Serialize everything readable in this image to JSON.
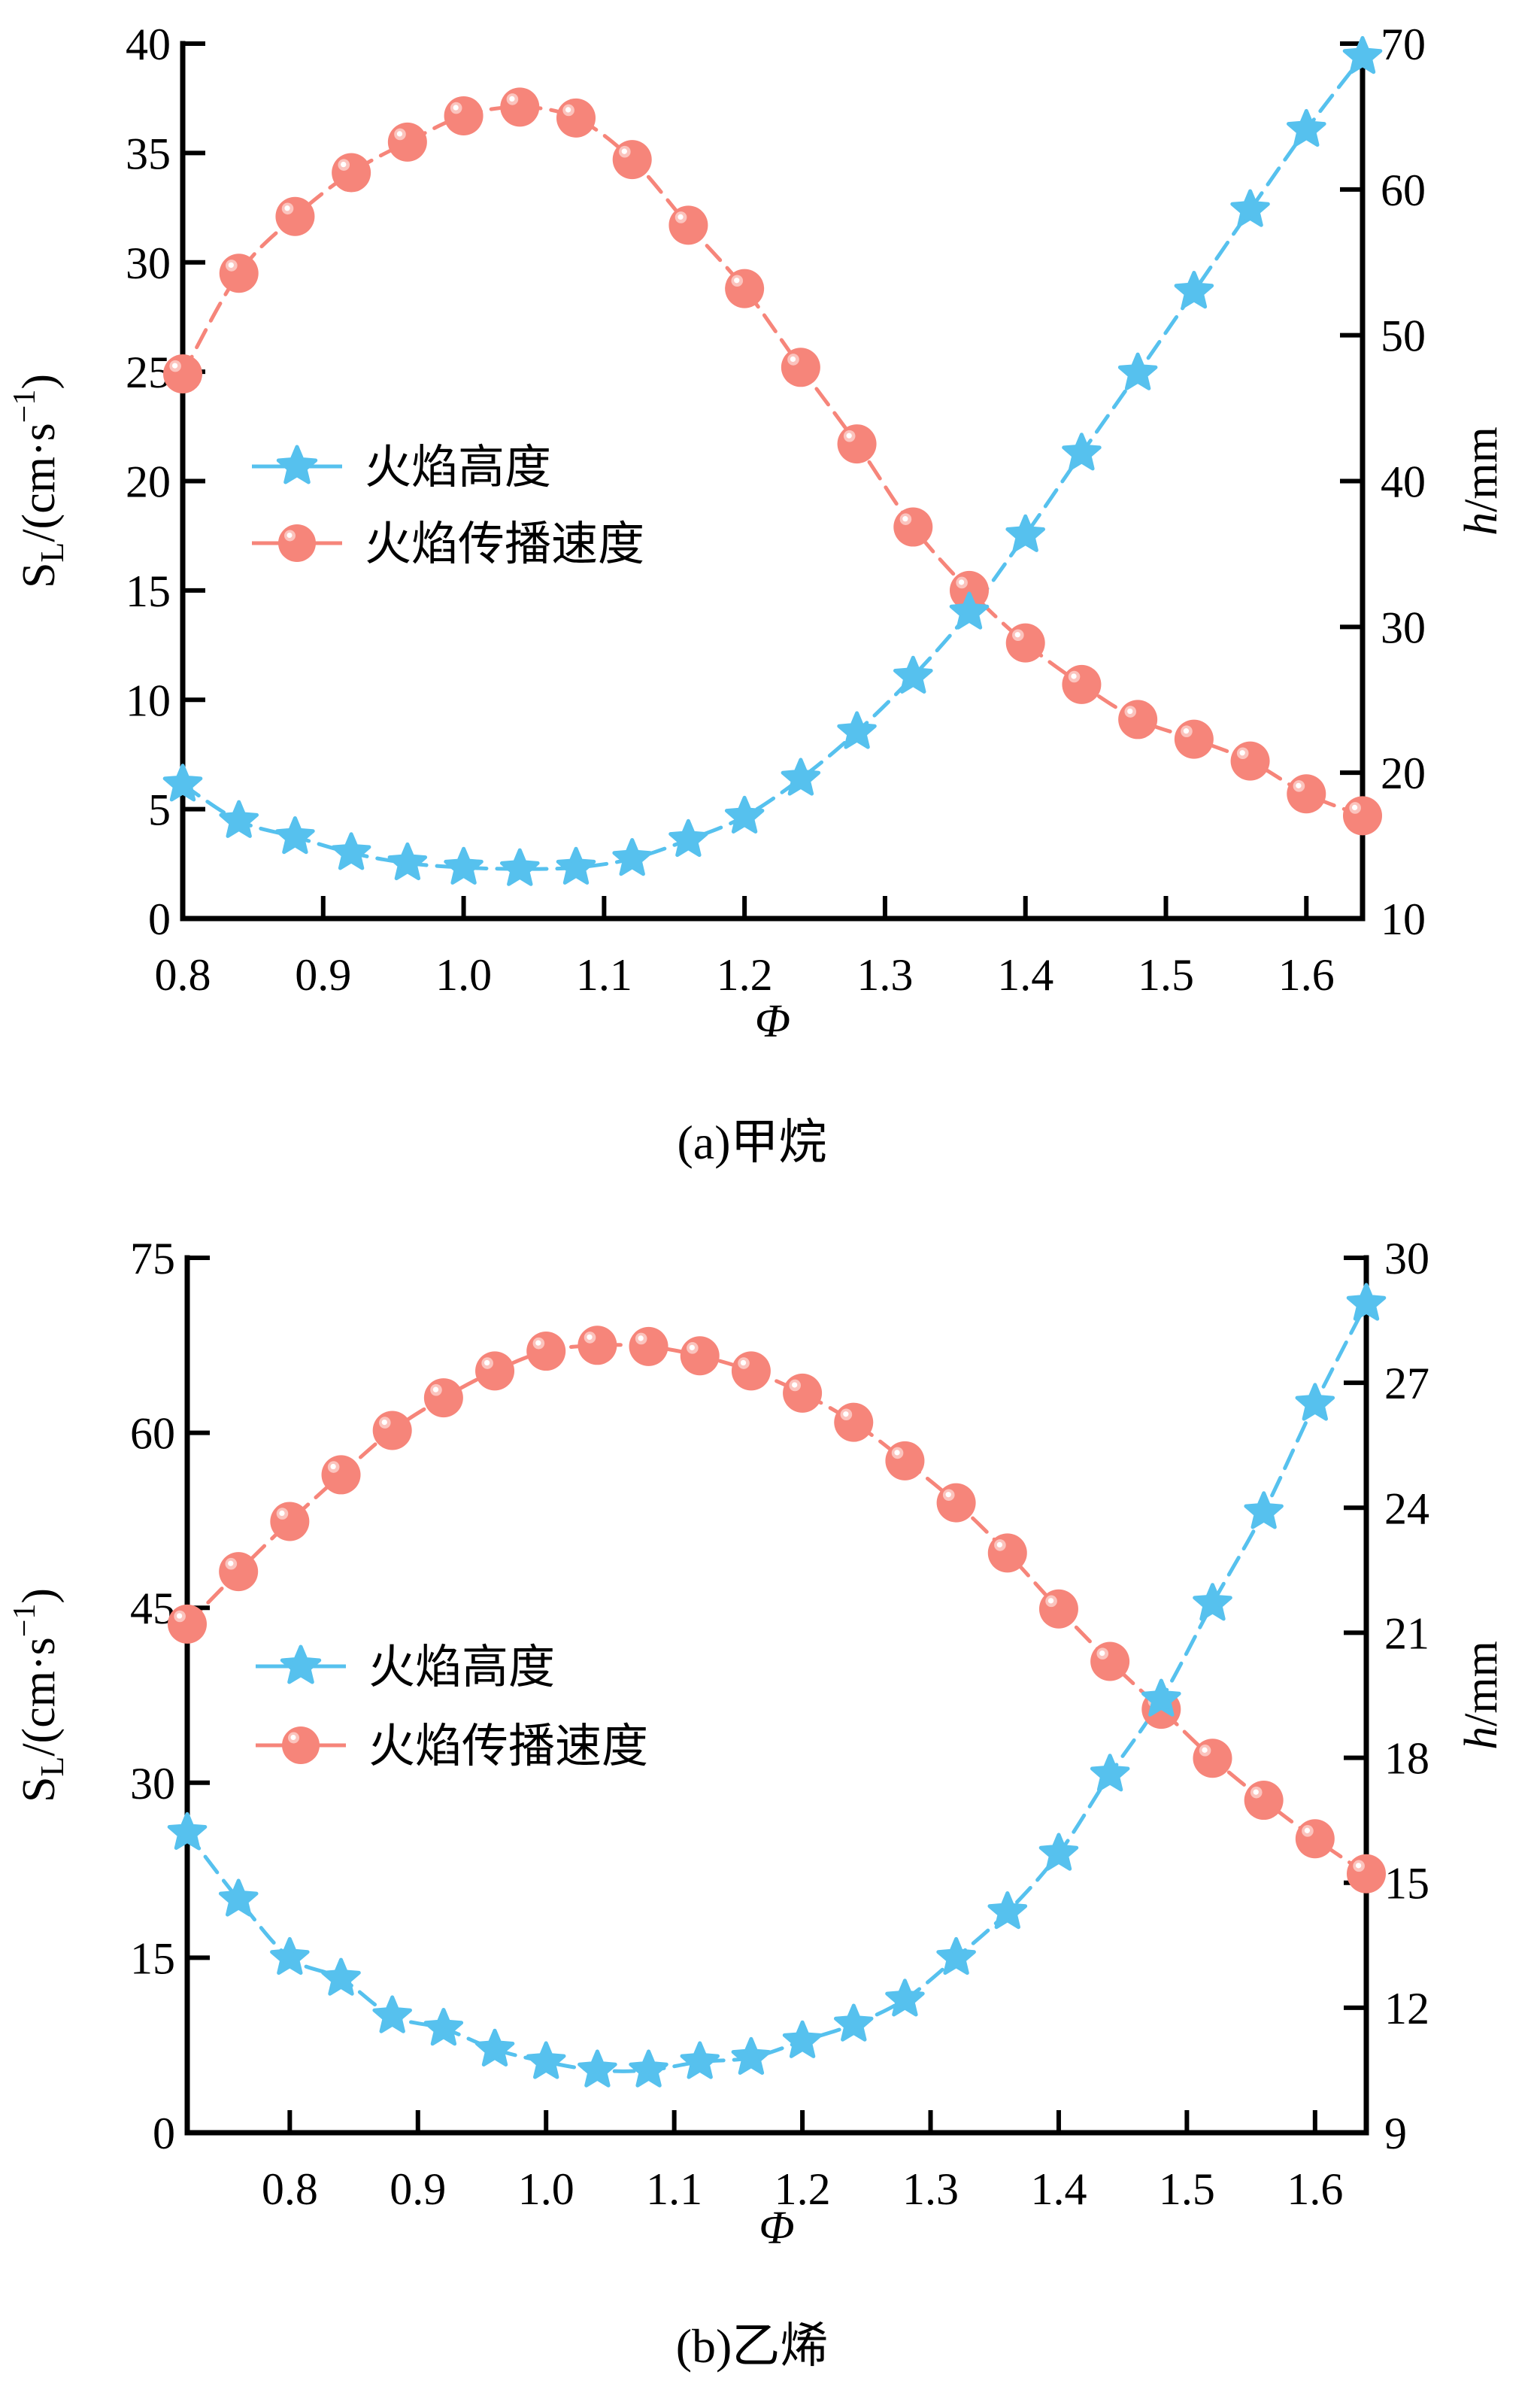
{
  "colors": {
    "height_series": "#56C1EE",
    "speed_series": "#F6857A",
    "axis": "#000000"
  },
  "icons": {
    "height_marker": "star-icon",
    "speed_marker": "sphere-icon"
  },
  "chart_data": [
    {
      "type": "line",
      "panel": "a",
      "caption": "(a)甲烷",
      "xlabel": "Φ",
      "ylabel_left": "S_L/(cm·s^-1)",
      "ylabel_left_parts": {
        "main": "S",
        "sub": "L",
        "unit": "/(cm·s",
        "sup": "−1",
        "close": ")"
      },
      "ylabel_right": "h/mm",
      "ylabel_right_parts": {
        "var": "h",
        "unit": "/mm"
      },
      "xlim": [
        0.8,
        1.64
      ],
      "ylim_left": [
        0,
        40
      ],
      "ylim_right": [
        10,
        70
      ],
      "xticks": [
        "0.8",
        "0.9",
        "1.0",
        "1.1",
        "1.2",
        "1.3",
        "1.4",
        "1.5",
        "1.6"
      ],
      "xtick_values": [
        0.8,
        0.9,
        1.0,
        1.1,
        1.2,
        1.3,
        1.4,
        1.5,
        1.6
      ],
      "yticks_left": [
        "0",
        "5",
        "10",
        "15",
        "20",
        "25",
        "30",
        "35",
        "40"
      ],
      "ytick_values_left": [
        0,
        5,
        10,
        15,
        20,
        25,
        30,
        35,
        40
      ],
      "yticks_right": [
        "10",
        "20",
        "30",
        "40",
        "50",
        "60",
        "70"
      ],
      "ytick_values_right": [
        10,
        20,
        30,
        40,
        50,
        60,
        70
      ],
      "legend": [
        "火焰高度",
        "火焰传播速度"
      ],
      "legend_position": "center-left",
      "grid": false,
      "x": [
        0.8,
        0.84,
        0.88,
        0.92,
        0.96,
        1.0,
        1.04,
        1.08,
        1.12,
        1.16,
        1.2,
        1.24,
        1.28,
        1.32,
        1.36,
        1.4,
        1.44,
        1.48,
        1.52,
        1.56,
        1.6,
        1.64
      ],
      "series": [
        {
          "name": "火焰高度",
          "axis": "right",
          "marker": "star",
          "values": [
            19.2,
            16.7,
            15.6,
            14.5,
            13.8,
            13.5,
            13.4,
            13.5,
            14.1,
            15.4,
            17.0,
            19.6,
            22.8,
            26.6,
            31.0,
            36.3,
            41.9,
            47.4,
            53.0,
            58.6,
            64.1,
            69.1
          ]
        },
        {
          "name": "火焰传播速度",
          "axis": "left",
          "marker": "sphere",
          "values": [
            24.9,
            29.5,
            32.1,
            34.1,
            35.5,
            36.7,
            37.1,
            36.6,
            34.7,
            31.7,
            28.8,
            25.2,
            21.7,
            17.9,
            15.0,
            12.6,
            10.7,
            9.1,
            8.2,
            7.2,
            5.7,
            4.7
          ]
        }
      ]
    },
    {
      "type": "line",
      "panel": "b",
      "caption": "(b)乙烯",
      "xlabel": "Φ",
      "ylabel_left": "S_L/(cm·s^-1)",
      "ylabel_left_parts": {
        "main": "S",
        "sub": "L",
        "unit": "/(cm·s",
        "sup": "−1",
        "close": ")"
      },
      "ylabel_right": "h/mm",
      "ylabel_right_parts": {
        "var": "h",
        "unit": "/mm"
      },
      "xlim": [
        0.72,
        1.64
      ],
      "ylim_left": [
        0,
        75
      ],
      "ylim_right": [
        9,
        30
      ],
      "xticks": [
        "0.8",
        "0.9",
        "1.0",
        "1.1",
        "1.2",
        "1.3",
        "1.4",
        "1.5",
        "1.6"
      ],
      "xtick_values": [
        0.8,
        0.9,
        1.0,
        1.1,
        1.2,
        1.3,
        1.4,
        1.5,
        1.6
      ],
      "yticks_left": [
        "0",
        "15",
        "30",
        "45",
        "60",
        "75"
      ],
      "ytick_values_left": [
        0,
        15,
        30,
        45,
        60,
        75
      ],
      "yticks_right": [
        "9",
        "12",
        "15",
        "18",
        "21",
        "24",
        "27",
        "30"
      ],
      "ytick_values_right": [
        9,
        12,
        15,
        18,
        21,
        24,
        27,
        30
      ],
      "legend": [
        "火焰高度",
        "火焰传播速度"
      ],
      "legend_position": "center-left",
      "grid": false,
      "x": [
        0.72,
        0.76,
        0.8,
        0.84,
        0.88,
        0.92,
        0.96,
        1.0,
        1.04,
        1.08,
        1.12,
        1.16,
        1.2,
        1.24,
        1.28,
        1.32,
        1.36,
        1.4,
        1.44,
        1.48,
        1.52,
        1.56,
        1.6,
        1.64
      ],
      "series": [
        {
          "name": "火焰高度",
          "axis": "right",
          "marker": "star",
          "values": [
            16.2,
            14.6,
            13.2,
            12.7,
            11.8,
            11.5,
            11.0,
            10.7,
            10.5,
            10.5,
            10.7,
            10.8,
            11.2,
            11.6,
            12.2,
            13.2,
            14.3,
            15.7,
            17.6,
            19.4,
            21.7,
            23.9,
            26.5,
            28.9
          ]
        },
        {
          "name": "火焰传播速度",
          "axis": "left",
          "marker": "sphere",
          "values": [
            43.6,
            48.1,
            52.4,
            56.4,
            60.2,
            63.0,
            65.3,
            67.0,
            67.5,
            67.4,
            66.6,
            65.3,
            63.4,
            60.9,
            57.6,
            54.0,
            49.7,
            44.9,
            40.4,
            36.3,
            32.1,
            28.5,
            25.2,
            22.2
          ]
        }
      ]
    }
  ]
}
